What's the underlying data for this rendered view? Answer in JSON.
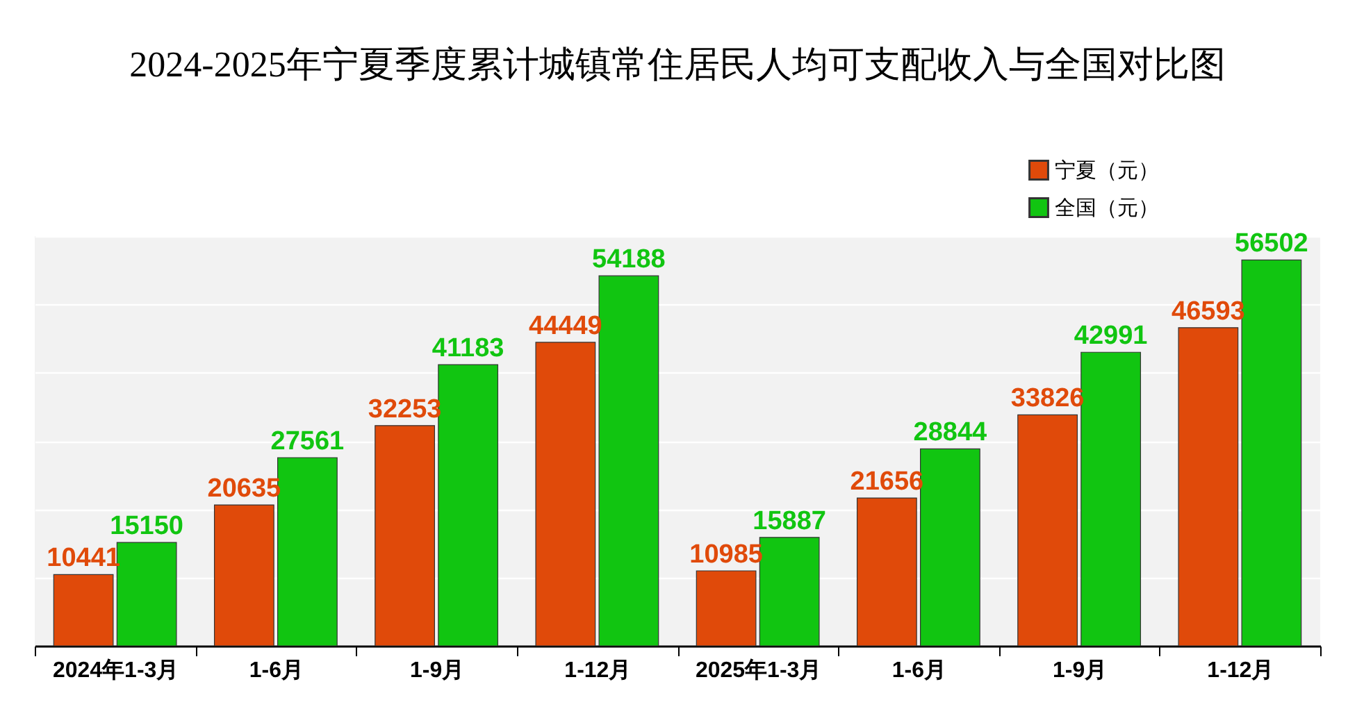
{
  "chart_data": {
    "type": "bar",
    "title": "2024-2025年宁夏季度累计城镇常住居民人均可支配收入与全国对比图",
    "categories": [
      "2024年1-3月",
      "1-6月",
      "1-9月",
      "1-12月",
      "2025年1-3月",
      "1-6月",
      "1-9月",
      "1-12月"
    ],
    "series": [
      {
        "name": "宁夏（元）",
        "color": "#e04a0a",
        "values": [
          10441,
          20635,
          32253,
          44449,
          10985,
          21656,
          33826,
          46593
        ]
      },
      {
        "name": "全国（元）",
        "color": "#11c511",
        "values": [
          15150,
          27561,
          41183,
          54188,
          15887,
          28844,
          42991,
          56502
        ]
      }
    ],
    "tick_labels": "x",
    "grid": "y",
    "legend": "top right",
    "data_labels": true
  }
}
